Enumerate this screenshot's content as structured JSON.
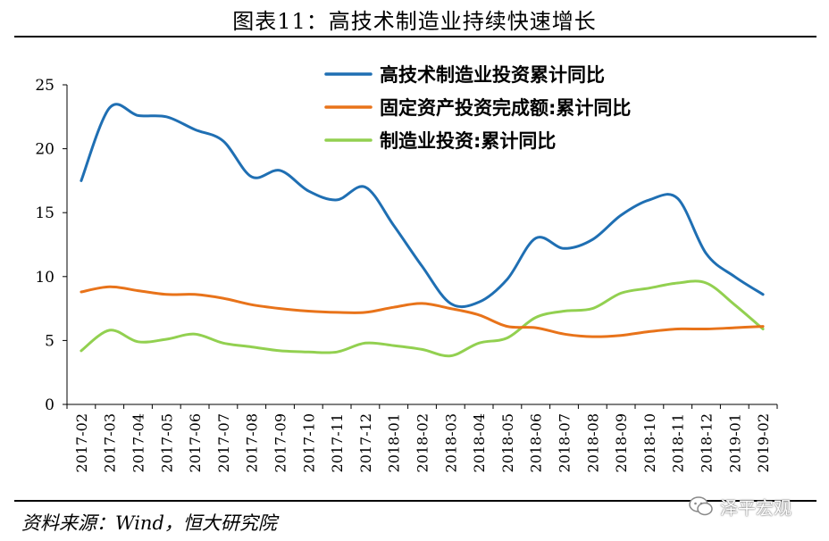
{
  "header": {
    "title": "图表11：高技术制造业持续快速增长"
  },
  "footer": {
    "source": "资料来源：Wind，恒大研究院",
    "watermark": "泽平宏观"
  },
  "chart_data": {
    "type": "line",
    "title": "图表11：高技术制造业持续快速增长",
    "xlabel": "",
    "ylabel": "",
    "ylim": [
      0,
      25
    ],
    "yticks": [
      "0",
      "5",
      "10",
      "15",
      "20",
      "25"
    ],
    "categories": [
      "2017-02",
      "2017-03",
      "2017-04",
      "2017-05",
      "2017-06",
      "2017-07",
      "2017-08",
      "2017-09",
      "2017-10",
      "2017-11",
      "2017-12",
      "2018-01",
      "2018-02",
      "2018-03",
      "2018-04",
      "2018-05",
      "2018-06",
      "2018-07",
      "2018-08",
      "2018-09",
      "2018-10",
      "2018-11",
      "2018-12",
      "2019-01",
      "2019-02"
    ],
    "legend_position": "top-right",
    "series": [
      {
        "name": "高技术制造业投资累计同比",
        "color": "#1F6FB3",
        "values": [
          17.5,
          23.2,
          22.6,
          22.5,
          21.5,
          20.6,
          17.8,
          18.3,
          16.7,
          16.0,
          17.0,
          14.0,
          10.8,
          7.9,
          8.0,
          9.8,
          13.0,
          12.2,
          12.9,
          14.8,
          16.0,
          16.1,
          11.8,
          10.0,
          8.6
        ]
      },
      {
        "name": "固定资产投资完成额:累计同比",
        "color": "#E8731A",
        "values": [
          8.8,
          9.2,
          8.9,
          8.6,
          8.6,
          8.3,
          7.8,
          7.5,
          7.3,
          7.2,
          7.2,
          7.6,
          7.9,
          7.5,
          7.0,
          6.1,
          6.0,
          5.5,
          5.3,
          5.4,
          5.7,
          5.9,
          5.9,
          6.0,
          6.1
        ]
      },
      {
        "name": "制造业投资:累计同比",
        "color": "#92D050",
        "values": [
          4.2,
          5.8,
          4.9,
          5.1,
          5.5,
          4.8,
          4.5,
          4.2,
          4.1,
          4.1,
          4.8,
          4.6,
          4.3,
          3.8,
          4.8,
          5.2,
          6.8,
          7.3,
          7.5,
          8.7,
          9.1,
          9.5,
          9.5,
          7.8,
          5.9
        ]
      }
    ]
  }
}
